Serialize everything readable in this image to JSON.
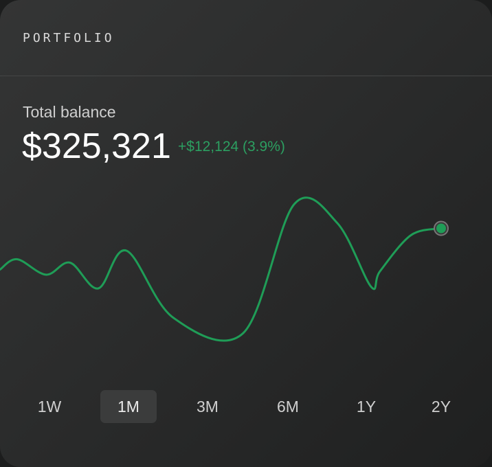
{
  "card": {
    "title": "PORTFOLIO"
  },
  "balance": {
    "label": "Total balance",
    "amount": "$325,321",
    "change": "+$12,124 (3.9%)"
  },
  "colors": {
    "accent": "#1f9d57",
    "marker_ring": "#777777"
  },
  "ranges": {
    "items": [
      "1W",
      "1M",
      "3M",
      "6M",
      "1Y",
      "2Y"
    ],
    "selected": "1M"
  },
  "chart_data": {
    "type": "line",
    "title": "",
    "xlabel": "",
    "ylabel": "",
    "series": [
      {
        "values": [
          255,
          261,
          252,
          259,
          244,
          266,
          227,
          218,
          293,
          282,
          245,
          254,
          275,
          279
        ]
      }
    ],
    "grid": false,
    "legend": "none",
    "last_point_marker": true
  }
}
